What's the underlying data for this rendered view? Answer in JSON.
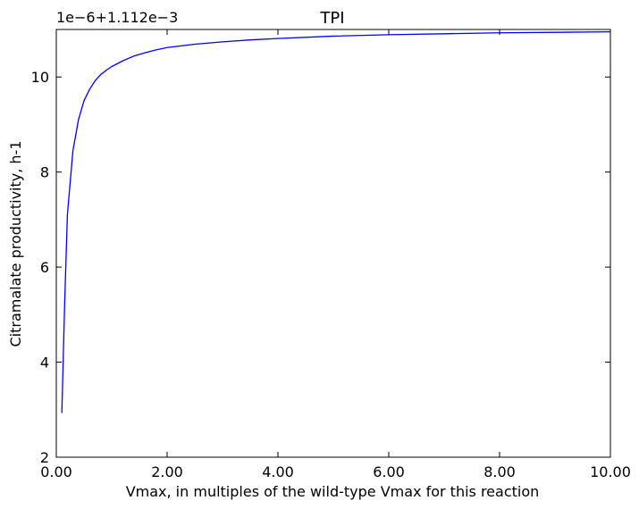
{
  "chart_data": {
    "type": "line",
    "title": "TPI",
    "xlabel": "Vmax, in multiples of the wild-type Vmax for this reaction",
    "ylabel": "Citramalate productivity, h-1",
    "offset_text": "1e−6+1.112e−3",
    "xlim": [
      0.0,
      10.0
    ],
    "ylim": [
      2,
      11
    ],
    "x_ticks": [
      0,
      2,
      4,
      6,
      8,
      10
    ],
    "x_tick_labels": [
      "0.00",
      "2.00",
      "4.00",
      "6.00",
      "8.00",
      "10.00"
    ],
    "y_ticks": [
      2,
      4,
      6,
      8,
      10
    ],
    "y_tick_labels": [
      "2",
      "4",
      "6",
      "8",
      "10"
    ],
    "grid": false,
    "series": [
      {
        "color": "#0000ff",
        "x": [
          0.1,
          0.15,
          0.2,
          0.3,
          0.4,
          0.5,
          0.6,
          0.7,
          0.8,
          0.9,
          1.0,
          1.2,
          1.4,
          1.6,
          1.8,
          2.0,
          2.5,
          3.0,
          3.5,
          4.0,
          5.0,
          6.0,
          7.0,
          8.0,
          9.0,
          10.0
        ],
        "y": [
          2.93,
          5.2,
          7.1,
          8.45,
          9.1,
          9.5,
          9.74,
          9.92,
          10.05,
          10.14,
          10.22,
          10.34,
          10.44,
          10.51,
          10.57,
          10.62,
          10.69,
          10.74,
          10.78,
          10.81,
          10.86,
          10.89,
          10.91,
          10.93,
          10.94,
          10.95
        ]
      }
    ]
  }
}
